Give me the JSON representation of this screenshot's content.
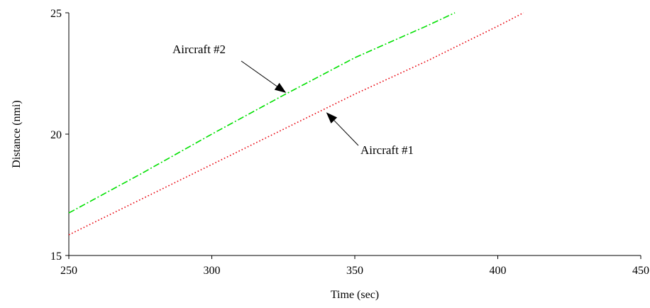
{
  "chart_data": {
    "type": "line",
    "title": "",
    "xlabel": "Time (sec)",
    "ylabel": "Distance (nmi)",
    "xlim": [
      250,
      450
    ],
    "ylim": [
      15,
      25
    ],
    "x_ticks": [
      250,
      300,
      350,
      400,
      450
    ],
    "y_ticks": [
      15,
      20,
      25
    ],
    "grid": false,
    "series": [
      {
        "name": "Aircraft #1",
        "color": "#e8000b",
        "style": "dotted",
        "x": [
          250,
          275,
          300,
          325,
          350,
          375,
          400,
          409
        ],
        "y": [
          15.85,
          17.3,
          18.75,
          20.2,
          21.65,
          23.0,
          24.45,
          25.0
        ]
      },
      {
        "name": "Aircraft #2",
        "color": "#00e000",
        "style": "dashdot",
        "x": [
          250,
          275,
          300,
          325,
          350,
          375,
          385
        ],
        "y": [
          16.75,
          18.35,
          20.0,
          21.6,
          23.15,
          24.45,
          25.0
        ]
      }
    ],
    "annotations": [
      {
        "text": "Aircraft #2",
        "points_to": {
          "x": 326,
          "y": 21.7
        }
      },
      {
        "text": "Aircraft #1",
        "points_to": {
          "x": 340,
          "y": 20.9
        }
      }
    ]
  }
}
